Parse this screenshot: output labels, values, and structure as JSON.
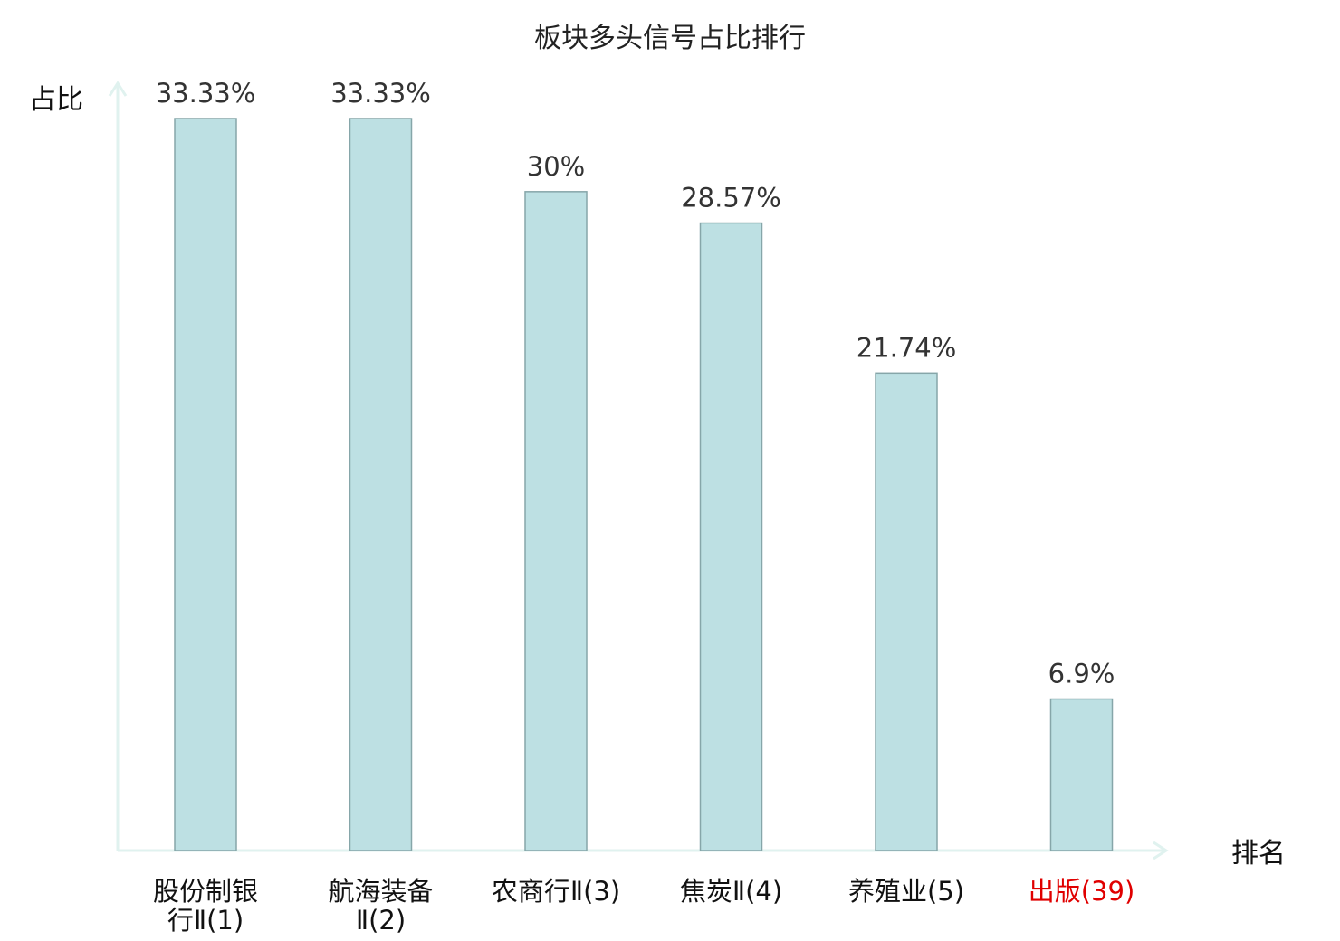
{
  "chart_data": {
    "type": "bar",
    "title": "板块多头信号占比排行",
    "xlabel": "排名",
    "ylabel": "占比",
    "ylim": [
      0,
      36
    ],
    "grid": false,
    "categories": [
      {
        "name": "股份制银行Ⅱ",
        "rank": "(1)",
        "lines": [
          "股份制银",
          "行Ⅱ(1)"
        ],
        "highlight": false
      },
      {
        "name": "航海装备Ⅱ",
        "rank": "(2)",
        "lines": [
          "航海装备",
          "Ⅱ(2)"
        ],
        "highlight": false
      },
      {
        "name": "农商行Ⅱ",
        "rank": "(3)",
        "lines": [
          "农商行Ⅱ(3)"
        ],
        "highlight": false
      },
      {
        "name": "焦炭Ⅱ",
        "rank": "(4)",
        "lines": [
          "焦炭Ⅱ(4)"
        ],
        "highlight": false
      },
      {
        "name": "养殖业",
        "rank": "(5)",
        "lines": [
          "养殖业(5)"
        ],
        "highlight": false
      },
      {
        "name": "出版",
        "rank": "(39)",
        "lines": [
          "出版(39)"
        ],
        "highlight": true
      }
    ],
    "values": [
      33.33,
      33.33,
      30,
      28.57,
      21.74,
      6.9
    ],
    "value_labels": [
      "33.33%",
      "33.33%",
      "30%",
      "28.57%",
      "21.74%",
      "6.9%"
    ]
  },
  "colors": {
    "bar_fill": "#bde0e3",
    "bar_stroke": "#86a6a9",
    "axis": "#e0f2ef",
    "text": "#333333",
    "highlight_text": "#e00000",
    "category_text": "#111111"
  }
}
